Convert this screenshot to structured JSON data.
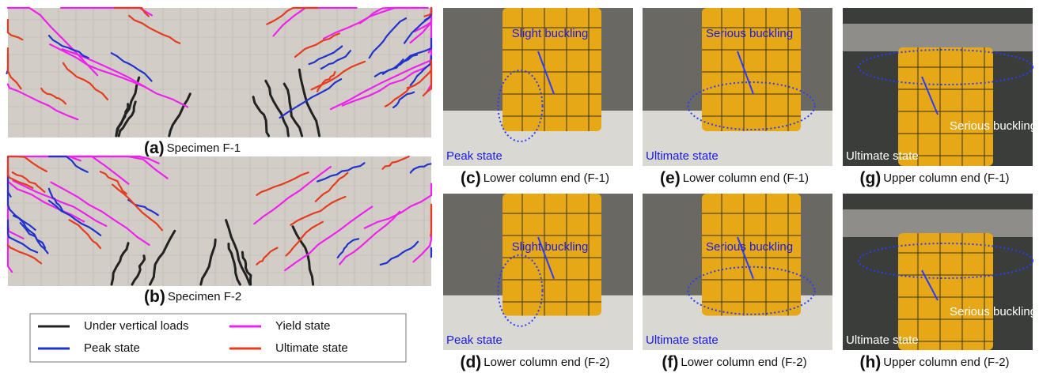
{
  "panels": [
    {
      "id": "(a)",
      "caption": "Specimen F-1"
    },
    {
      "id": "(b)",
      "caption": "Specimen F-2"
    }
  ],
  "legend": [
    {
      "name": "Under vertical loads",
      "color": "#222222"
    },
    {
      "name": "Yield state",
      "color": "#ee22ee"
    },
    {
      "name": "Peak state",
      "color": "#2233cc"
    },
    {
      "name": "Ultimate state",
      "color": "#e63b1e"
    }
  ],
  "photos": [
    {
      "id": "(c)",
      "caption": "Lower column end (F-1)",
      "annotation": "Slight buckling",
      "state": "Peak state"
    },
    {
      "id": "(d)",
      "caption": "Lower column end (F-2)",
      "annotation": "Slight buckling",
      "state": "Peak state"
    },
    {
      "id": "(e)",
      "caption": "Lower column end (F-1)",
      "annotation": "Serious buckling",
      "state": "Ultimate state"
    },
    {
      "id": "(f)",
      "caption": "Lower column end (F-2)",
      "annotation": "Serious buckling",
      "state": "Ultimate state"
    },
    {
      "id": "(g)",
      "caption": "Upper column end (F-1)",
      "annotation": "Serious buckling",
      "state": "Ultimate state"
    },
    {
      "id": "(h)",
      "caption": "Upper column end (F-2)",
      "annotation": "Serious buckling",
      "state": "Ultimate state"
    }
  ]
}
